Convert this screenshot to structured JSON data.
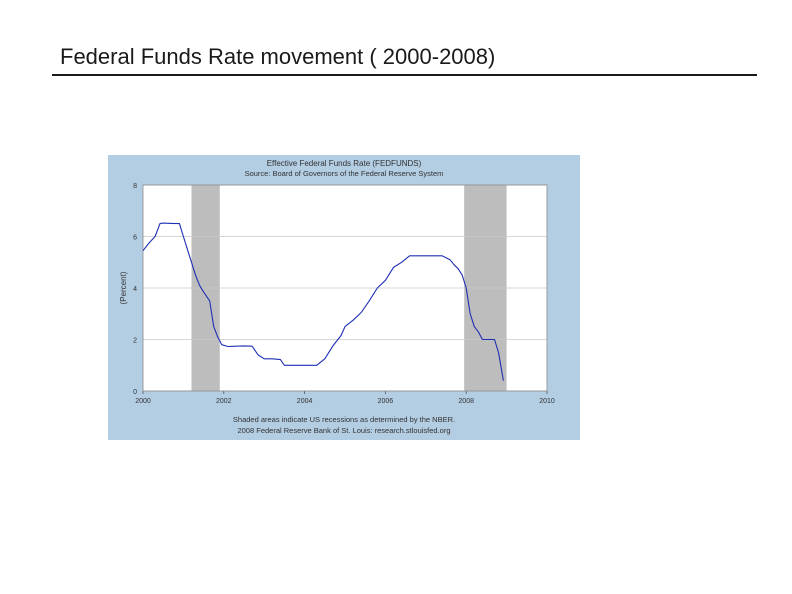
{
  "slide": {
    "title": "Federal Funds Rate movement ( 2000-2008)"
  },
  "colors": {
    "panel": "#b3cde3",
    "plot_bg": "#ffffff",
    "line": "#1f2fb4",
    "recession": "#bdbdbd",
    "grid": "#c8c8c8"
  },
  "chart_data": {
    "type": "line",
    "title": "Effective Federal Funds Rate (FEDFUNDS)",
    "subtitle": "Source: Board of Governors of the Federal Reserve System",
    "xlabel": "",
    "ylabel": "(Percent)",
    "xlim": [
      2000,
      2010
    ],
    "ylim": [
      0,
      8
    ],
    "x_ticks": [
      "2000",
      "2002",
      "2004",
      "2006",
      "2008",
      "2010"
    ],
    "y_ticks": [
      "0",
      "2",
      "4",
      "6",
      "8"
    ],
    "grid": true,
    "recessions": [
      [
        2001.2,
        2001.9
      ],
      [
        2007.95,
        2009.0
      ]
    ],
    "footnote_1": "Shaded areas indicate US recessions as determined by the NBER.",
    "footnote_2": "2008 Federal Reserve Bank of St. Louis: research.stlouisfed.org",
    "series": [
      {
        "name": "FEDFUNDS",
        "x": [
          2000.0,
          2000.15,
          2000.3,
          2000.42,
          2000.5,
          2000.7,
          2000.9,
          2001.0,
          2001.1,
          2001.2,
          2001.3,
          2001.4,
          2001.5,
          2001.65,
          2001.75,
          2001.85,
          2001.95,
          2002.1,
          2002.3,
          2002.5,
          2002.7,
          2002.85,
          2003.0,
          2003.2,
          2003.4,
          2003.5,
          2003.7,
          2004.0,
          2004.3,
          2004.5,
          2004.7,
          2004.9,
          2005.0,
          2005.2,
          2005.4,
          2005.6,
          2005.8,
          2006.0,
          2006.2,
          2006.4,
          2006.6,
          2006.8,
          2007.0,
          2007.2,
          2007.4,
          2007.6,
          2007.7,
          2007.8,
          2007.9,
          2008.0,
          2008.1,
          2008.2,
          2008.3,
          2008.4,
          2008.55,
          2008.7,
          2008.8,
          2008.92
        ],
        "values": [
          5.45,
          5.75,
          6.0,
          6.5,
          6.52,
          6.51,
          6.5,
          6.0,
          5.5,
          5.0,
          4.5,
          4.1,
          3.85,
          3.5,
          2.5,
          2.1,
          1.8,
          1.73,
          1.74,
          1.75,
          1.74,
          1.4,
          1.25,
          1.25,
          1.22,
          1.0,
          1.0,
          1.0,
          1.0,
          1.25,
          1.75,
          2.15,
          2.5,
          2.75,
          3.05,
          3.5,
          4.0,
          4.3,
          4.8,
          5.0,
          5.25,
          5.25,
          5.25,
          5.25,
          5.25,
          5.1,
          4.9,
          4.75,
          4.5,
          4.0,
          3.0,
          2.5,
          2.3,
          2.0,
          2.0,
          2.0,
          1.5,
          0.4
        ]
      }
    ]
  }
}
